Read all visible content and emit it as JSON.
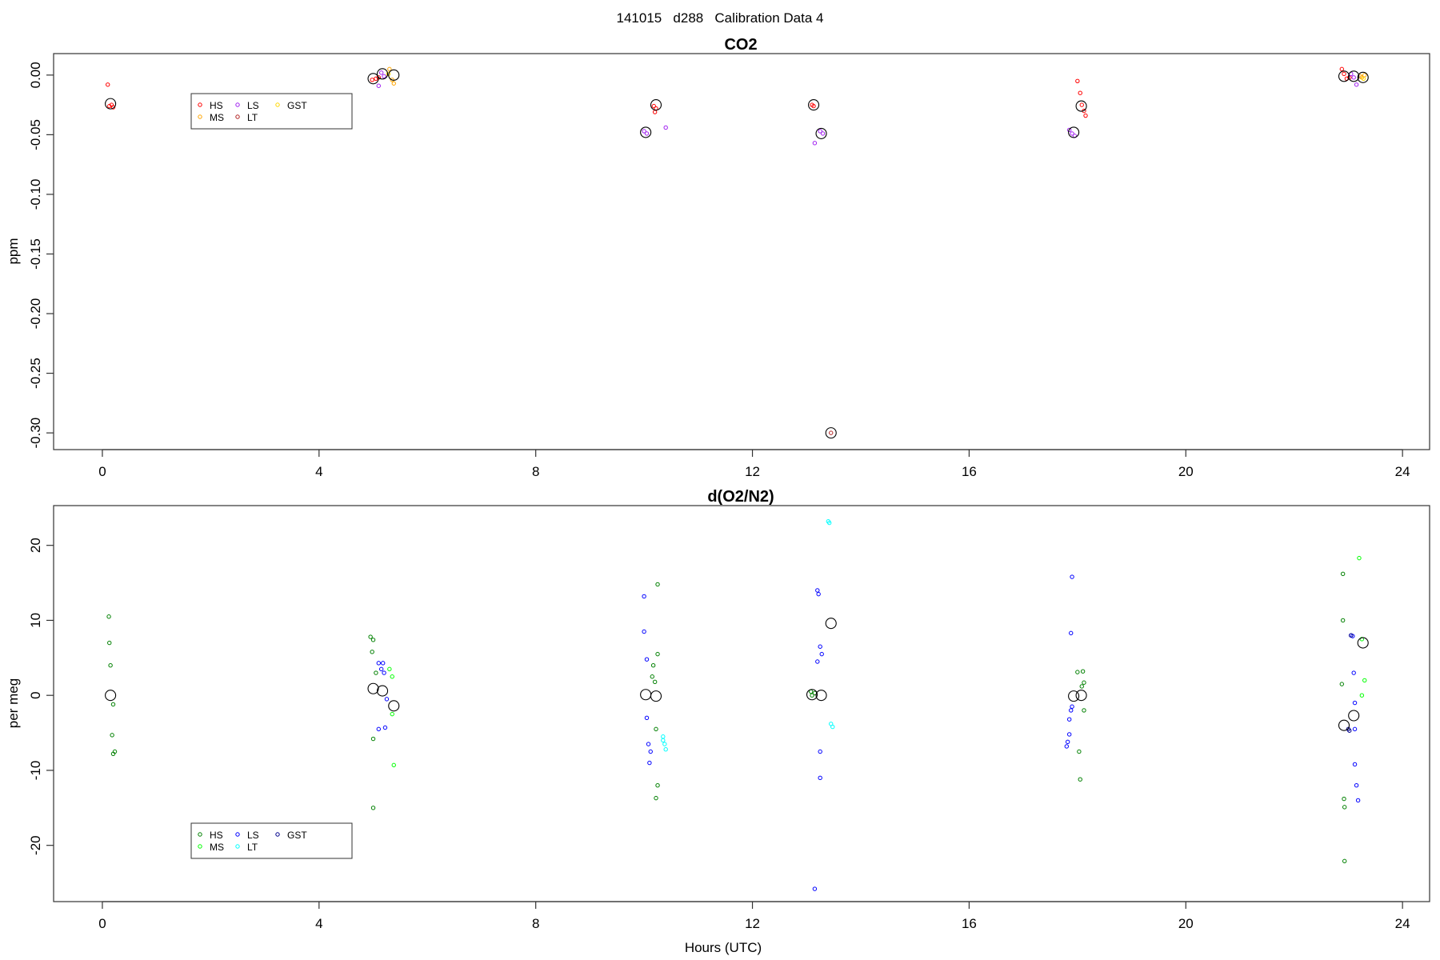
{
  "figure_title": "141015   d288   Calibration Data 4",
  "chart_data": [
    {
      "type": "scatter",
      "title": "CO2",
      "xlabel": "",
      "ylabel": "ppm",
      "xlim": [
        -0.9,
        24.5
      ],
      "ylim": [
        -0.314,
        0.018
      ],
      "x_ticks": [
        0,
        4,
        8,
        12,
        16,
        20,
        24
      ],
      "y_ticks": [
        0.0,
        -0.05,
        -0.1,
        -0.15,
        -0.2,
        -0.25,
        -0.3
      ],
      "y_tick_labels": [
        "0.00",
        "-0.05",
        "-0.10",
        "-0.15",
        "-0.20",
        "-0.25",
        "-0.30"
      ],
      "grid": false,
      "legend": {
        "placement": "top-left",
        "entries": [
          {
            "name": "HS",
            "color": "#ff0000"
          },
          {
            "name": "MS",
            "color": "#ffa500"
          },
          {
            "name": "LS",
            "color": "#a020f0"
          },
          {
            "name": "LT",
            "color": "#b22222"
          },
          {
            "name": "GST",
            "color": "#ffd700"
          }
        ]
      },
      "series": [
        {
          "name": "HS",
          "color": "#ff0000",
          "points": [
            [
              0.1,
              -0.008
            ],
            [
              0.13,
              -0.026
            ],
            [
              0.17,
              -0.025
            ],
            [
              0.2,
              -0.027
            ],
            [
              4.98,
              -0.004
            ],
            [
              5.05,
              -0.003
            ],
            [
              5.1,
              -0.002
            ],
            [
              10.18,
              -0.026
            ],
            [
              10.22,
              -0.028
            ],
            [
              10.2,
              -0.031
            ],
            [
              13.1,
              -0.025
            ],
            [
              13.13,
              -0.026
            ],
            [
              18.0,
              -0.005
            ],
            [
              18.05,
              -0.015
            ],
            [
              18.08,
              -0.025
            ],
            [
              18.12,
              -0.03
            ],
            [
              18.15,
              -0.034
            ],
            [
              22.88,
              0.005
            ],
            [
              22.92,
              0.001
            ],
            [
              22.97,
              -0.003
            ],
            [
              23.02,
              -0.002
            ]
          ]
        },
        {
          "name": "MS",
          "color": "#ffa500",
          "points": [
            [
              5.3,
              0.005
            ],
            [
              5.35,
              -0.004
            ],
            [
              5.38,
              -0.007
            ],
            [
              23.22,
              -0.001
            ],
            [
              23.25,
              -0.002
            ],
            [
              23.3,
              0.0
            ]
          ]
        },
        {
          "name": "LS",
          "color": "#a020f0",
          "points": [
            [
              5.1,
              -0.009
            ],
            [
              5.15,
              0.002
            ],
            [
              5.2,
              -0.001
            ],
            [
              10.0,
              -0.047
            ],
            [
              10.05,
              -0.049
            ],
            [
              10.4,
              -0.044
            ],
            [
              13.15,
              -0.057
            ],
            [
              13.25,
              -0.047
            ],
            [
              13.3,
              -0.049
            ],
            [
              17.85,
              -0.046
            ],
            [
              17.9,
              -0.049
            ],
            [
              17.95,
              -0.051
            ],
            [
              23.05,
              0.001
            ],
            [
              23.1,
              -0.002
            ],
            [
              23.15,
              -0.008
            ]
          ]
        },
        {
          "name": "LT",
          "color": "#b22222",
          "points": [
            [
              13.45,
              -0.3
            ]
          ]
        },
        {
          "name": "GST",
          "color": "#ffd700",
          "points": [
            [
              5.28,
              0.001
            ],
            [
              23.28,
              -0.003
            ]
          ]
        }
      ],
      "means": [
        [
          0.15,
          -0.024
        ],
        [
          5.0,
          -0.003
        ],
        [
          5.17,
          0.001
        ],
        [
          5.38,
          0.0
        ],
        [
          10.03,
          -0.048
        ],
        [
          10.22,
          -0.025
        ],
        [
          13.13,
          -0.025
        ],
        [
          13.27,
          -0.049
        ],
        [
          13.45,
          -0.3
        ],
        [
          17.93,
          -0.048
        ],
        [
          18.07,
          -0.026
        ],
        [
          22.92,
          -0.001
        ],
        [
          23.1,
          -0.001
        ],
        [
          23.27,
          -0.002
        ]
      ]
    },
    {
      "type": "scatter",
      "title": "d(O2/N2)",
      "xlabel": "Hours (UTC)",
      "ylabel": "per meg",
      "xlim": [
        -0.9,
        24.5
      ],
      "ylim": [
        -27.5,
        25.3
      ],
      "x_ticks": [
        0,
        4,
        8,
        12,
        16,
        20,
        24
      ],
      "y_ticks": [
        20,
        10,
        0,
        -10,
        -20
      ],
      "y_tick_labels": [
        "20",
        "10",
        "0",
        "-10",
        "-20"
      ],
      "grid": false,
      "legend": {
        "placement": "bottom-left",
        "entries": [
          {
            "name": "HS",
            "color": "#008000"
          },
          {
            "name": "MS",
            "color": "#00ff00"
          },
          {
            "name": "LS",
            "color": "#0000ff"
          },
          {
            "name": "LT",
            "color": "#00ffff"
          },
          {
            "name": "GST",
            "color": "#00008b"
          }
        ]
      },
      "series": [
        {
          "name": "HS",
          "color": "#008000",
          "points": [
            [
              0.12,
              10.5
            ],
            [
              0.13,
              7.0
            ],
            [
              0.15,
              4.0
            ],
            [
              0.18,
              -5.3
            ],
            [
              0.2,
              -7.8
            ],
            [
              0.23,
              -7.5
            ],
            [
              0.2,
              -1.2
            ],
            [
              4.95,
              7.8
            ],
            [
              5.0,
              7.4
            ],
            [
              4.98,
              5.8
            ],
            [
              5.0,
              -5.8
            ],
            [
              5.0,
              -15.0
            ],
            [
              5.05,
              3.0
            ],
            [
              10.15,
              2.5
            ],
            [
              10.17,
              4.0
            ],
            [
              10.2,
              1.8
            ],
            [
              10.25,
              14.8
            ],
            [
              10.25,
              5.5
            ],
            [
              10.22,
              -4.5
            ],
            [
              10.25,
              -12.0
            ],
            [
              10.22,
              -13.7
            ],
            [
              13.08,
              0.5
            ],
            [
              13.1,
              0.0
            ],
            [
              13.15,
              0.3
            ],
            [
              18.0,
              3.1
            ],
            [
              18.03,
              -7.5
            ],
            [
              18.05,
              -11.2
            ],
            [
              18.08,
              1.2
            ],
            [
              18.1,
              3.2
            ],
            [
              18.12,
              1.7
            ],
            [
              18.12,
              -2.0
            ],
            [
              22.88,
              1.5
            ],
            [
              22.9,
              10.0
            ],
            [
              22.9,
              16.2
            ],
            [
              22.92,
              -13.8
            ],
            [
              22.93,
              -14.9
            ],
            [
              22.93,
              -22.1
            ]
          ]
        },
        {
          "name": "MS",
          "color": "#00ff00",
          "points": [
            [
              5.3,
              3.5
            ],
            [
              5.35,
              2.5
            ],
            [
              5.35,
              -2.5
            ],
            [
              5.38,
              -9.3
            ],
            [
              23.2,
              18.3
            ],
            [
              23.25,
              7.5
            ],
            [
              23.3,
              2.0
            ],
            [
              23.25,
              0.0
            ]
          ]
        },
        {
          "name": "LS",
          "color": "#0000ff",
          "points": [
            [
              5.1,
              4.3
            ],
            [
              5.15,
              3.5
            ],
            [
              5.18,
              4.3
            ],
            [
              5.2,
              3.0
            ],
            [
              5.22,
              -4.3
            ],
            [
              5.1,
              -4.5
            ],
            [
              5.25,
              -0.5
            ],
            [
              10.0,
              13.2
            ],
            [
              10.0,
              8.5
            ],
            [
              10.05,
              4.8
            ],
            [
              10.05,
              -3.0
            ],
            [
              10.08,
              -6.5
            ],
            [
              10.1,
              -9.0
            ],
            [
              10.12,
              -7.5
            ],
            [
              13.2,
              14.0
            ],
            [
              13.22,
              13.5
            ],
            [
              13.25,
              6.5
            ],
            [
              13.28,
              5.5
            ],
            [
              13.2,
              4.5
            ],
            [
              13.25,
              -7.5
            ],
            [
              13.25,
              -11.0
            ],
            [
              13.15,
              -25.8
            ],
            [
              17.88,
              8.3
            ],
            [
              17.9,
              15.8
            ],
            [
              17.9,
              -1.5
            ],
            [
              17.88,
              -2.0
            ],
            [
              17.85,
              -3.2
            ],
            [
              17.85,
              -5.2
            ],
            [
              17.82,
              -6.2
            ],
            [
              17.8,
              -6.8
            ],
            [
              23.05,
              8.0
            ],
            [
              23.08,
              7.9
            ],
            [
              23.1,
              3.0
            ],
            [
              23.12,
              -1.0
            ],
            [
              23.12,
              -4.5
            ],
            [
              23.12,
              -9.2
            ],
            [
              23.15,
              -12.0
            ],
            [
              23.18,
              -14.0
            ]
          ]
        },
        {
          "name": "LT",
          "color": "#00ffff",
          "points": [
            [
              10.35,
              -5.5
            ],
            [
              10.38,
              -6.5
            ],
            [
              10.4,
              -7.2
            ],
            [
              10.35,
              -6.0
            ],
            [
              13.4,
              23.2
            ],
            [
              13.42,
              23.0
            ],
            [
              13.45,
              -3.8
            ],
            [
              13.48,
              -4.2
            ]
          ]
        },
        {
          "name": "GST",
          "color": "#00008b",
          "points": [
            [
              23.0,
              -4.5
            ],
            [
              23.02,
              -4.7
            ],
            [
              23.05,
              8.0
            ]
          ]
        }
      ],
      "means": [
        [
          0.15,
          0.0
        ],
        [
          5.0,
          0.9
        ],
        [
          5.17,
          0.6
        ],
        [
          5.38,
          -1.4
        ],
        [
          10.03,
          0.1
        ],
        [
          10.22,
          -0.1
        ],
        [
          13.1,
          0.1
        ],
        [
          13.27,
          0.0
        ],
        [
          13.45,
          9.6
        ],
        [
          17.93,
          -0.1
        ],
        [
          18.07,
          0.0
        ],
        [
          22.92,
          -4.0
        ],
        [
          23.1,
          -2.7
        ],
        [
          23.27,
          7.0
        ]
      ]
    }
  ]
}
